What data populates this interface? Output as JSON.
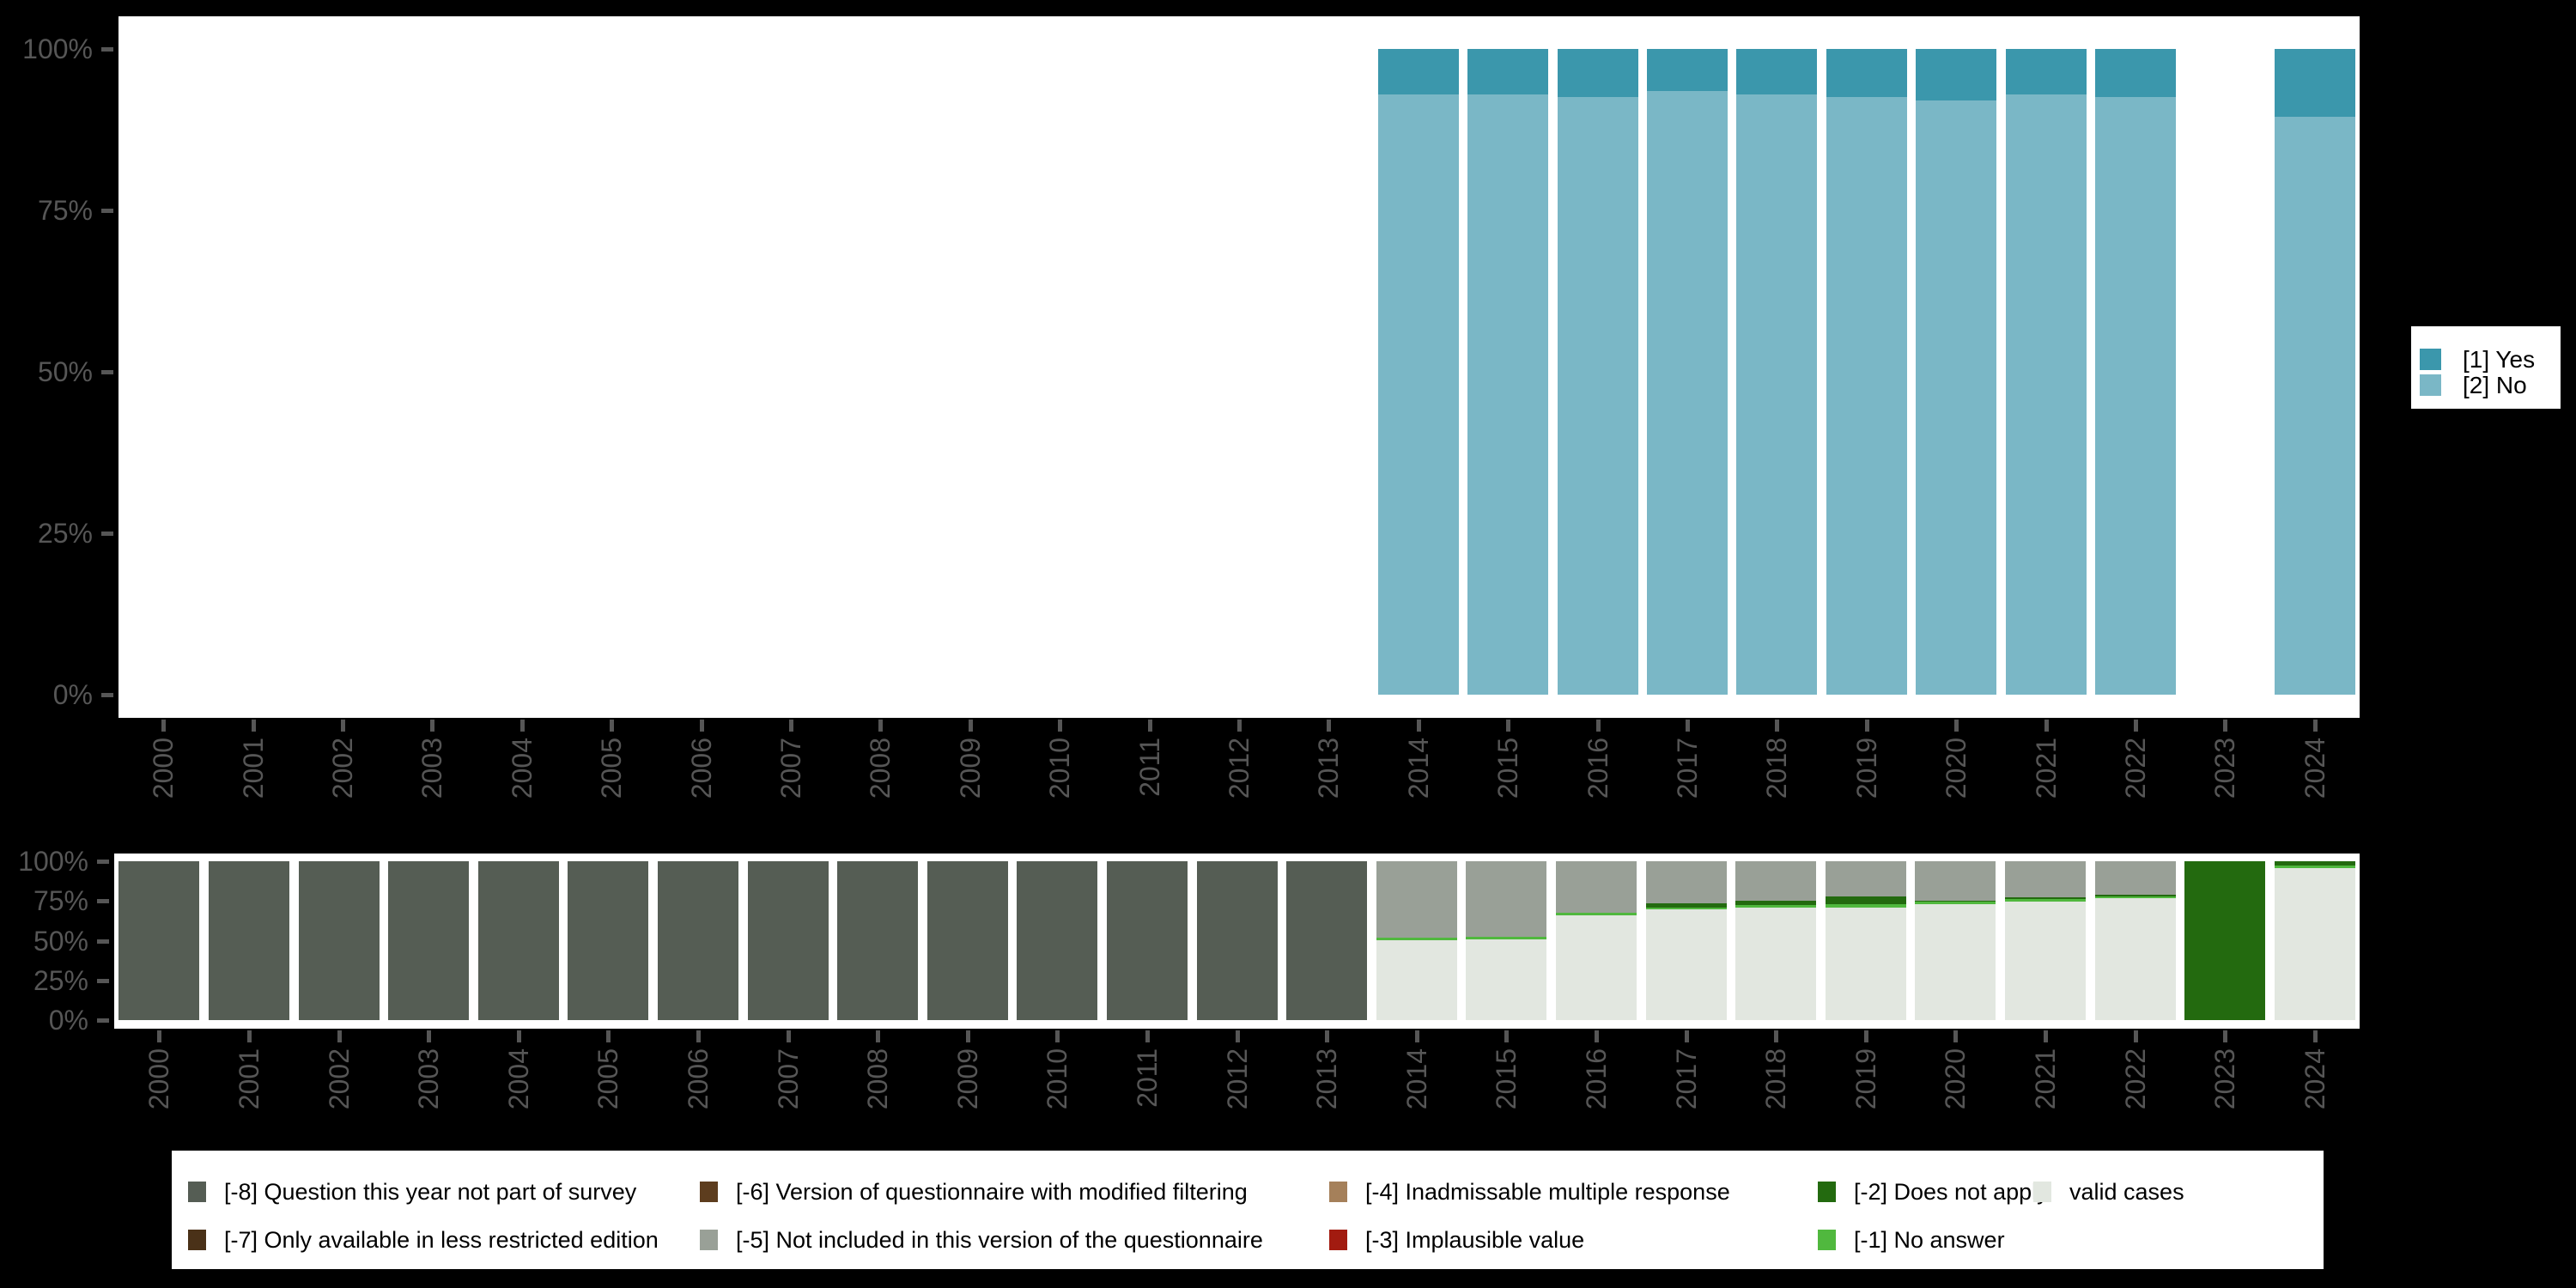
{
  "colors": {
    "background": "#000000",
    "plot_bg": "#ffffff",
    "axis_text": "#565656",
    "legend_text": "#000000",
    "yes": "#3b97ac",
    "no": "#7ab7c6",
    "m8": "#555d54",
    "m7": "#4a3118",
    "m6": "#5d3d1e",
    "m5": "#99a097",
    "m4": "#a5805a",
    "m3": "#a21b10",
    "m2": "#236a0f",
    "m1": "#50b83e",
    "valid": "#e2e7e0"
  },
  "right_legend": {
    "position": "right",
    "items": [
      {
        "label": "[1] Yes",
        "color_key": "yes"
      },
      {
        "label": "[2] No",
        "color_key": "no"
      }
    ]
  },
  "bottom_legend": {
    "position": "bottom",
    "columns": [
      {
        "items": [
          {
            "label": "[-8] Question this year not part of survey",
            "color_key": "m8"
          },
          {
            "label": "[-7] Only available in less restricted edition",
            "color_key": "m7"
          }
        ]
      },
      {
        "items": [
          {
            "label": "[-6] Version of questionnaire with modified filtering",
            "color_key": "m6"
          },
          {
            "label": "[-5] Not included in this version of the questionnaire",
            "color_key": "m5"
          }
        ]
      },
      {
        "items": [
          {
            "label": "[-4] Inadmissable multiple response",
            "color_key": "m4"
          },
          {
            "label": "[-3] Implausible value",
            "color_key": "m3"
          }
        ]
      },
      {
        "items": [
          {
            "label": "[-2] Does not apply",
            "color_key": "m2"
          },
          {
            "label": "[-1] No answer",
            "color_key": "m1"
          }
        ]
      },
      {
        "items": [
          {
            "label": "valid cases",
            "color_key": "valid"
          }
        ]
      }
    ]
  },
  "chart_data": [
    {
      "type": "bar",
      "stacked": true,
      "unit": "percent",
      "title": "",
      "xlabel": "",
      "ylabel": "",
      "ylim": [
        0,
        100
      ],
      "grid": false,
      "y_ticks": [
        "100%",
        "75%",
        "50%",
        "25%",
        "0%"
      ],
      "x": [
        "2000",
        "2001",
        "2002",
        "2003",
        "2004",
        "2005",
        "2006",
        "2007",
        "2008",
        "2009",
        "2010",
        "2011",
        "2012",
        "2013",
        "2014",
        "2015",
        "2016",
        "2017",
        "2018",
        "2019",
        "2020",
        "2021",
        "2022",
        "2023",
        "2024"
      ],
      "series": [
        {
          "name": "[1] Yes",
          "color_key": "yes",
          "values": [
            null,
            null,
            null,
            null,
            null,
            null,
            null,
            null,
            null,
            null,
            null,
            null,
            null,
            null,
            7,
            7,
            7.5,
            6.5,
            7,
            7.5,
            8,
            7,
            7.5,
            null,
            10.5
          ]
        },
        {
          "name": "[2] No",
          "color_key": "no",
          "values": [
            null,
            null,
            null,
            null,
            null,
            null,
            null,
            null,
            null,
            null,
            null,
            null,
            null,
            null,
            93,
            93,
            92.5,
            93.5,
            93,
            92.5,
            92,
            93,
            92.5,
            null,
            89.5
          ]
        }
      ]
    },
    {
      "type": "bar",
      "stacked": true,
      "unit": "percent",
      "title": "",
      "xlabel": "",
      "ylabel": "",
      "ylim": [
        0,
        100
      ],
      "grid": false,
      "y_ticks": [
        "100%",
        "75%",
        "50%",
        "25%",
        "0%"
      ],
      "x": [
        "2000",
        "2001",
        "2002",
        "2003",
        "2004",
        "2005",
        "2006",
        "2007",
        "2008",
        "2009",
        "2010",
        "2011",
        "2012",
        "2013",
        "2014",
        "2015",
        "2016",
        "2017",
        "2018",
        "2019",
        "2020",
        "2021",
        "2022",
        "2023",
        "2024"
      ],
      "series": [
        {
          "name": "[-8] Question this year not part of survey",
          "color_key": "m8",
          "values": [
            100,
            100,
            100,
            100,
            100,
            100,
            100,
            100,
            100,
            100,
            100,
            100,
            100,
            100,
            0,
            0,
            0,
            0,
            0,
            0,
            0,
            0,
            0,
            0,
            0
          ]
        },
        {
          "name": "[-5] Not included in this version of the questionnaire",
          "color_key": "m5",
          "values": [
            0,
            0,
            0,
            0,
            0,
            0,
            0,
            0,
            0,
            0,
            0,
            0,
            0,
            0,
            48,
            47.5,
            32.5,
            26.5,
            25,
            22,
            25,
            22.5,
            21,
            0,
            0
          ]
        },
        {
          "name": "[-2] Does not apply",
          "color_key": "m2",
          "values": [
            0,
            0,
            0,
            0,
            0,
            0,
            0,
            0,
            0,
            0,
            0,
            0,
            0,
            0,
            0,
            0,
            0,
            2.5,
            2.5,
            5,
            0.5,
            1.5,
            1,
            100,
            2.5
          ]
        },
        {
          "name": "[-1] No answer",
          "color_key": "m1",
          "values": [
            0,
            0,
            0,
            0,
            0,
            0,
            0,
            0,
            0,
            0,
            0,
            0,
            0,
            0,
            2,
            1.5,
            1.5,
            1.5,
            1.5,
            2,
            1.5,
            1.5,
            1.5,
            0,
            2
          ]
        },
        {
          "name": "valid cases",
          "color_key": "valid",
          "values": [
            0,
            0,
            0,
            0,
            0,
            0,
            0,
            0,
            0,
            0,
            0,
            0,
            0,
            0,
            50,
            51,
            66,
            69.5,
            71,
            71,
            73,
            74.5,
            76.5,
            0,
            95.5
          ]
        }
      ]
    }
  ]
}
